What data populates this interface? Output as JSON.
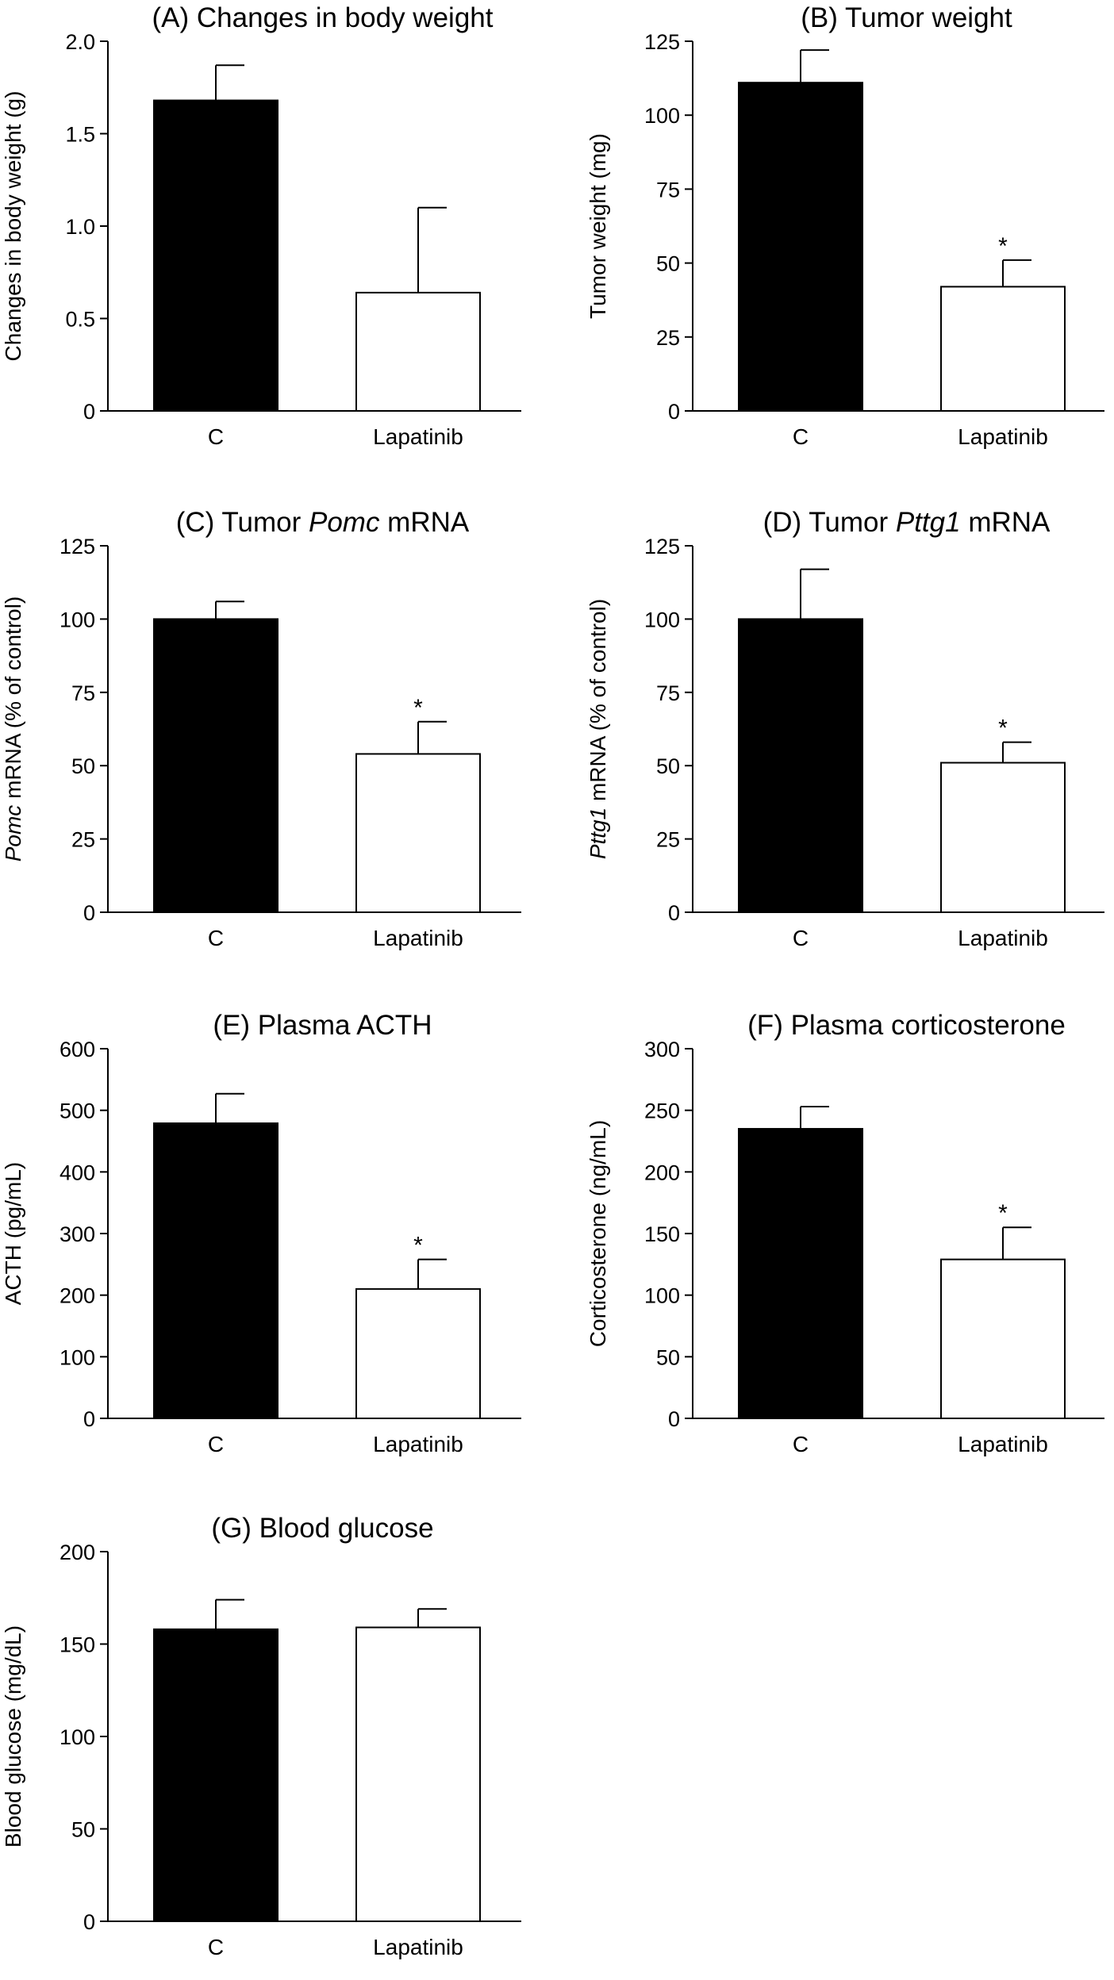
{
  "chart_data": [
    {
      "type": "bar",
      "title": "(A) Changes in body weight",
      "title_prefix": "(A) Changes in body weight",
      "title_italic": "",
      "title_suffix": "",
      "ylabel": "Changes in body weight (g)",
      "ylabel_italic": "",
      "ylabel_rest": "Changes in body weight (g)",
      "categories": [
        "C",
        "Lapatinib"
      ],
      "values": [
        1.68,
        0.64
      ],
      "errors": [
        0.19,
        0.46
      ],
      "significance": [
        "",
        ""
      ],
      "ylim": [
        0,
        2.0
      ],
      "yticks": [
        0,
        0.5,
        1.0,
        1.5,
        2.0
      ],
      "ytick_labels": [
        "0",
        "0.5",
        "1.0",
        "1.5",
        "2.0"
      ],
      "bar_colors": [
        "#000000",
        "#ffffff"
      ]
    },
    {
      "type": "bar",
      "title": "(B) Tumor weight",
      "title_prefix": "(B) Tumor weight",
      "title_italic": "",
      "title_suffix": "",
      "ylabel": "Tumor weight (mg)",
      "ylabel_italic": "",
      "ylabel_rest": "Tumor weight (mg)",
      "categories": [
        "C",
        "Lapatinib"
      ],
      "values": [
        111,
        42
      ],
      "errors": [
        11,
        9
      ],
      "significance": [
        "",
        "*"
      ],
      "ylim": [
        0,
        125
      ],
      "yticks": [
        0,
        25,
        50,
        75,
        100,
        125
      ],
      "ytick_labels": [
        "0",
        "25",
        "50",
        "75",
        "100",
        "125"
      ],
      "bar_colors": [
        "#000000",
        "#ffffff"
      ]
    },
    {
      "type": "bar",
      "title": "(C) Tumor Pomc mRNA",
      "title_prefix": "(C) Tumor ",
      "title_italic": "Pomc",
      "title_suffix": " mRNA",
      "ylabel": "Pomc mRNA (% of control)",
      "ylabel_italic": "Pomc",
      "ylabel_rest": " mRNA (% of control)",
      "categories": [
        "C",
        "Lapatinib"
      ],
      "values": [
        100,
        54
      ],
      "errors": [
        6,
        11
      ],
      "significance": [
        "",
        "*"
      ],
      "ylim": [
        0,
        125
      ],
      "yticks": [
        0,
        25,
        50,
        75,
        100,
        125
      ],
      "ytick_labels": [
        "0",
        "25",
        "50",
        "75",
        "100",
        "125"
      ],
      "bar_colors": [
        "#000000",
        "#ffffff"
      ]
    },
    {
      "type": "bar",
      "title": "(D) Tumor Pttg1 mRNA",
      "title_prefix": "(D) Tumor ",
      "title_italic": "Pttg1",
      "title_suffix": " mRNA",
      "ylabel": "Pttg1 mRNA (% of control)",
      "ylabel_italic": "Pttg1",
      "ylabel_rest": " mRNA (% of control)",
      "categories": [
        "C",
        "Lapatinib"
      ],
      "values": [
        100,
        51
      ],
      "errors": [
        17,
        7
      ],
      "significance": [
        "",
        "*"
      ],
      "ylim": [
        0,
        125
      ],
      "yticks": [
        0,
        25,
        50,
        75,
        100,
        125
      ],
      "ytick_labels": [
        "0",
        "25",
        "50",
        "75",
        "100",
        "125"
      ],
      "bar_colors": [
        "#000000",
        "#ffffff"
      ]
    },
    {
      "type": "bar",
      "title": "(E) Plasma ACTH",
      "title_prefix": "(E) Plasma ACTH",
      "title_italic": "",
      "title_suffix": "",
      "ylabel": "ACTH (pg/mL)",
      "ylabel_italic": "",
      "ylabel_rest": "ACTH (pg/mL)",
      "categories": [
        "C",
        "Lapatinib"
      ],
      "values": [
        479,
        210
      ],
      "errors": [
        48,
        48
      ],
      "significance": [
        "",
        "*"
      ],
      "ylim": [
        0,
        600
      ],
      "yticks": [
        0,
        100,
        200,
        300,
        400,
        500,
        600
      ],
      "ytick_labels": [
        "0",
        "100",
        "200",
        "300",
        "400",
        "500",
        "600"
      ],
      "bar_colors": [
        "#000000",
        "#ffffff"
      ]
    },
    {
      "type": "bar",
      "title": "(F) Plasma corticosterone",
      "title_prefix": "(F) Plasma corticosterone",
      "title_italic": "",
      "title_suffix": "",
      "ylabel": "Corticosterone (ng/mL)",
      "ylabel_italic": "",
      "ylabel_rest": "Corticosterone (ng/mL)",
      "categories": [
        "C",
        "Lapatinib"
      ],
      "values": [
        235,
        129
      ],
      "errors": [
        18,
        26
      ],
      "significance": [
        "",
        "*"
      ],
      "ylim": [
        0,
        300
      ],
      "yticks": [
        0,
        50,
        100,
        150,
        200,
        250,
        300
      ],
      "ytick_labels": [
        "0",
        "50",
        "100",
        "150",
        "200",
        "250",
        "300"
      ],
      "bar_colors": [
        "#000000",
        "#ffffff"
      ]
    },
    {
      "type": "bar",
      "title": "(G) Blood glucose",
      "title_prefix": "(G) Blood glucose",
      "title_italic": "",
      "title_suffix": "",
      "ylabel": "Blood glucose (mg/dL)",
      "ylabel_italic": "",
      "ylabel_rest": "Blood glucose (mg/dL)",
      "categories": [
        "C",
        "Lapatinib"
      ],
      "values": [
        158,
        159
      ],
      "errors": [
        16,
        10
      ],
      "significance": [
        "",
        ""
      ],
      "ylim": [
        0,
        200
      ],
      "yticks": [
        0,
        50,
        100,
        150,
        200
      ],
      "ytick_labels": [
        "0",
        "50",
        "100",
        "150",
        "200"
      ],
      "bar_colors": [
        "#000000",
        "#ffffff"
      ]
    }
  ]
}
